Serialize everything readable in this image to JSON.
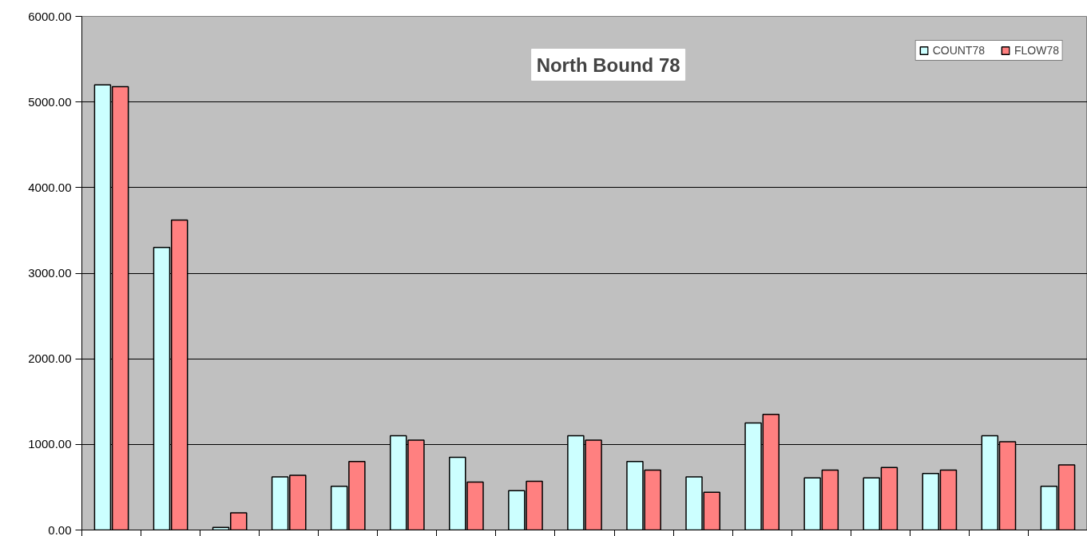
{
  "chart_data": {
    "type": "bar",
    "title": "North Bound 78",
    "categories": [
      null,
      null,
      null,
      null,
      null,
      null,
      null,
      null,
      null,
      null,
      null,
      null,
      null,
      null,
      null,
      null,
      null
    ],
    "series": [
      {
        "name": "COUNT78",
        "color": "#ccffff",
        "values": [
          5200,
          3300,
          30,
          620,
          510,
          1100,
          850,
          460,
          1100,
          800,
          620,
          1250,
          610,
          610,
          660,
          1100,
          510
        ]
      },
      {
        "name": "FLOW78",
        "color": "#ff8080",
        "values": [
          5180,
          3620,
          200,
          640,
          800,
          1050,
          560,
          570,
          1050,
          700,
          440,
          1350,
          700,
          730,
          700,
          1030,
          760
        ]
      }
    ],
    "ylim": [
      0,
      6000
    ],
    "yticks": [
      {
        "value": 0,
        "label": "0.00"
      },
      {
        "value": 1000,
        "label": "1000.00"
      },
      {
        "value": 2000,
        "label": "2000.00"
      },
      {
        "value": 3000,
        "label": "3000.00"
      },
      {
        "value": 4000,
        "label": "4000.00"
      },
      {
        "value": 5000,
        "label": "5000.00"
      },
      {
        "value": 6000,
        "label": "6000.00"
      }
    ],
    "grid": "y",
    "legend": "top right",
    "tick_labels": "y"
  }
}
